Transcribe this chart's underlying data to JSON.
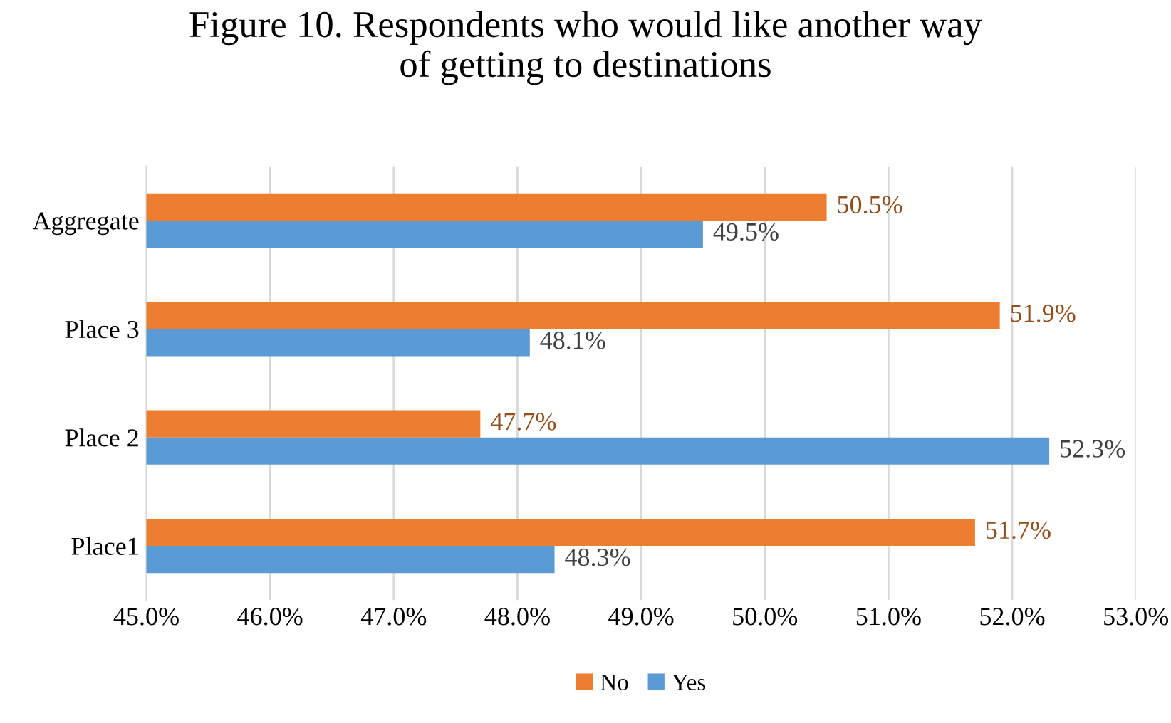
{
  "chart_data": {
    "type": "bar",
    "orientation": "horizontal",
    "title": "Figure 10. Respondents who would like another way\nof getting to destinations",
    "categories": [
      "Aggregate",
      "Place 3",
      "Place 2",
      "Place1"
    ],
    "series": [
      {
        "name": "No",
        "color": "#ed7d31",
        "values": [
          50.5,
          51.9,
          47.7,
          51.7
        ],
        "value_labels": [
          "50.5%",
          "51.9%",
          "47.7%",
          "51.7%"
        ]
      },
      {
        "name": "Yes",
        "color": "#5b9bd5",
        "values": [
          49.5,
          48.1,
          52.3,
          48.3
        ],
        "value_labels": [
          "49.5%",
          "48.1%",
          "52.3%",
          "48.3%"
        ]
      }
    ],
    "xlim": [
      45,
      53
    ],
    "xticks": [
      {
        "value": 45,
        "label": "45.0%"
      },
      {
        "value": 46,
        "label": "46.0%"
      },
      {
        "value": 47,
        "label": "47.0%"
      },
      {
        "value": 48,
        "label": "48.0%"
      },
      {
        "value": 49,
        "label": "49.0%"
      },
      {
        "value": 50,
        "label": "50.0%"
      },
      {
        "value": 51,
        "label": "51.0%"
      },
      {
        "value": 52,
        "label": "52.0%"
      },
      {
        "value": 53,
        "label": "53.0%"
      }
    ],
    "grid": "x",
    "legend": "bottom"
  }
}
